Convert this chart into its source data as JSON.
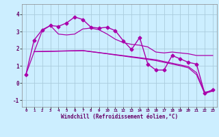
{
  "background_color": "#cceeff",
  "grid_color": "#aaccdd",
  "line_color": "#aa00aa",
  "xlabel": "Windchill (Refroidissement éolien,°C)",
  "xlim": [
    -0.5,
    23.5
  ],
  "ylim": [
    -1.4,
    4.6
  ],
  "yticks": [
    -1,
    0,
    1,
    2,
    3,
    4
  ],
  "xticks": [
    0,
    1,
    2,
    3,
    4,
    5,
    6,
    7,
    8,
    9,
    10,
    11,
    12,
    13,
    14,
    15,
    16,
    17,
    18,
    19,
    20,
    21,
    22,
    23
  ],
  "xticklabels": [
    "0",
    "1",
    "2",
    "3",
    "4",
    "5",
    "6",
    "7",
    "8",
    "9",
    "10",
    "11",
    "12",
    "13",
    "14",
    "15",
    "16",
    "17",
    "18",
    "19",
    "20",
    "21",
    "22",
    "23"
  ],
  "series": [
    {
      "x": [
        0,
        1,
        2,
        3,
        4,
        5,
        6,
        7,
        8,
        9,
        10,
        11,
        12,
        13,
        14,
        15,
        16,
        17,
        18,
        19,
        20,
        21,
        22,
        23
      ],
      "y": [
        0.5,
        2.5,
        3.1,
        3.35,
        3.3,
        3.5,
        3.85,
        3.7,
        3.25,
        3.2,
        3.25,
        3.05,
        2.45,
        1.95,
        2.65,
        1.1,
        0.75,
        0.75,
        1.6,
        1.4,
        1.2,
        1.1,
        -0.6,
        -0.4
      ],
      "marker": "D",
      "markersize": 2.5,
      "linewidth": 1.0,
      "has_markers": true
    },
    {
      "x": [
        0,
        1,
        2,
        3,
        4,
        5,
        6,
        7,
        8,
        9,
        10,
        11,
        12,
        13,
        14,
        15,
        16,
        17,
        18,
        19,
        20,
        21,
        22,
        23
      ],
      "y": [
        0.5,
        1.8,
        3.05,
        3.35,
        2.85,
        2.8,
        2.85,
        3.15,
        3.2,
        3.1,
        2.85,
        2.55,
        2.35,
        2.25,
        2.2,
        2.1,
        1.8,
        1.75,
        1.8,
        1.75,
        1.7,
        1.6,
        1.6,
        1.6
      ],
      "marker": null,
      "linewidth": 0.9,
      "has_markers": false
    },
    {
      "x": [
        1,
        2,
        3,
        4,
        5,
        6,
        7,
        8,
        9,
        10,
        11,
        12,
        13,
        14,
        15,
        16,
        17,
        18,
        19,
        20,
        21,
        22,
        23
      ],
      "y": [
        1.83,
        1.84,
        1.85,
        1.86,
        1.87,
        1.88,
        1.89,
        1.83,
        1.77,
        1.71,
        1.65,
        1.59,
        1.53,
        1.47,
        1.41,
        1.35,
        1.25,
        1.15,
        1.05,
        0.95,
        0.6,
        -0.55,
        -0.45
      ],
      "marker": null,
      "linewidth": 0.9,
      "has_markers": false
    },
    {
      "x": [
        1,
        2,
        3,
        4,
        5,
        6,
        7,
        8,
        9,
        10,
        11,
        12,
        13,
        14,
        15,
        16,
        17,
        18,
        19,
        20,
        21,
        22,
        23
      ],
      "y": [
        1.82,
        1.83,
        1.84,
        1.85,
        1.86,
        1.87,
        1.88,
        1.82,
        1.76,
        1.7,
        1.63,
        1.57,
        1.5,
        1.44,
        1.37,
        1.3,
        1.2,
        1.1,
        1.0,
        0.88,
        0.48,
        -0.62,
        -0.48
      ],
      "marker": null,
      "linewidth": 0.9,
      "has_markers": false
    }
  ]
}
